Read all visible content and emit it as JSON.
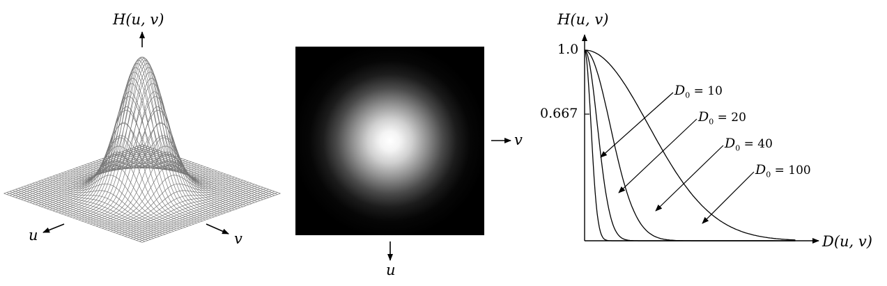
{
  "surface": {
    "z_axis_label": "H(u, v)",
    "u_label": "u",
    "v_label": "v"
  },
  "image": {
    "v_label": "v",
    "u_label": "u"
  },
  "chart_data": {
    "type": "line",
    "xlabel": "D(u, v)",
    "ylabel": "H(u, v)",
    "yticks": [
      "1.0",
      "0.667"
    ],
    "ylim": [
      0,
      1.0
    ],
    "xlim": [
      0,
      330
    ],
    "series": [
      {
        "name": "D0 = 10",
        "sub_symbol": "D",
        "sub_index": "0",
        "eq": "= 10",
        "d0": 10
      },
      {
        "name": "D0 = 20",
        "sub_symbol": "D",
        "sub_index": "0",
        "eq": "= 20",
        "d0": 20
      },
      {
        "name": "D0 = 40",
        "sub_symbol": "D",
        "sub_index": "0",
        "eq": "= 40",
        "d0": 40
      },
      {
        "name": "D0 = 100",
        "sub_symbol": "D",
        "sub_index": "0",
        "eq": "= 100",
        "d0": 100
      }
    ]
  }
}
